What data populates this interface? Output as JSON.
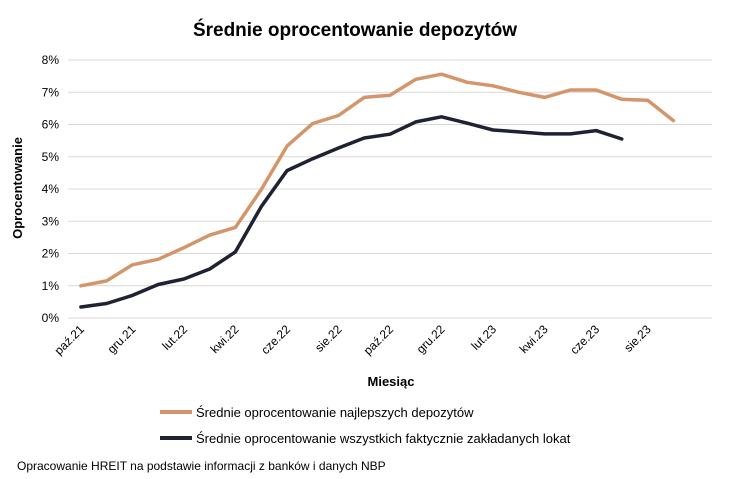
{
  "chart_data": {
    "type": "line",
    "title": "Średnie oprocentowanie depozytów",
    "xlabel": "Miesiąc",
    "ylabel": "Oprocentowanie",
    "ylim": [
      0,
      8
    ],
    "y_ticks": [
      "0%",
      "1%",
      "2%",
      "3%",
      "4%",
      "5%",
      "6%",
      "7%",
      "8%"
    ],
    "x_tick_labels": [
      "paź.21",
      "gru.21",
      "lut.22",
      "kwi.22",
      "cze.22",
      "sie.22",
      "paź.22",
      "gru.22",
      "lut.23",
      "kwi.23",
      "cze.23",
      "sie.23"
    ],
    "grid": true,
    "legend_position": "bottom",
    "series": [
      {
        "name": "Średnie oprocentowanie najlepszych depozytów",
        "color": "#d4956a",
        "values": [
          1.0,
          1.15,
          1.65,
          1.82,
          2.18,
          2.57,
          2.81,
          3.98,
          5.33,
          6.03,
          6.28,
          6.84,
          6.91,
          7.4,
          7.56,
          7.31,
          7.2,
          7.0,
          6.84,
          7.07,
          7.07,
          6.78,
          6.75,
          6.12
        ]
      },
      {
        "name": "Średnie oprocentowanie wszystkich faktycznie zakładanych lokat",
        "color": "#1f2233",
        "values": [
          0.34,
          0.45,
          0.7,
          1.04,
          1.21,
          1.52,
          2.05,
          3.45,
          4.57,
          4.94,
          5.27,
          5.58,
          5.7,
          6.08,
          6.24,
          6.04,
          5.83,
          5.77,
          5.71,
          5.71,
          5.81,
          5.55
        ]
      }
    ]
  },
  "source_note": "Opracowanie HREIT na podstawie informacji z banków i danych NBP"
}
